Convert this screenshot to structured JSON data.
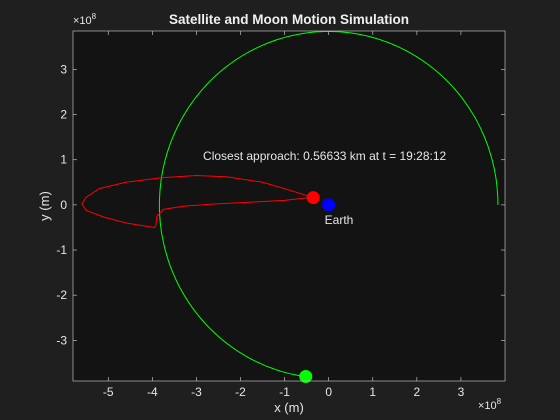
{
  "chart_data": {
    "type": "line",
    "title": "Satellite and Moon Motion Simulation",
    "xlabel": "x (m)",
    "ylabel": "y (m)",
    "x_exponent_label": "×10",
    "x_exponent": "8",
    "y_exponent_label": "×10",
    "y_exponent": "8",
    "xlim": [
      -5.8,
      4.0
    ],
    "ylim": [
      -3.9,
      3.85
    ],
    "xticks": [
      -5,
      -4,
      -3,
      -2,
      -1,
      0,
      1,
      2,
      3
    ],
    "yticks": [
      -3,
      -2,
      -1,
      0,
      1,
      2,
      3
    ],
    "grid": false,
    "background": "#131313",
    "figure_background": "#1f1f1f",
    "text_color": "#e6e6e6",
    "annotation": {
      "text": "Closest approach: 0.56633 km at t = 19:28:12",
      "x": -2.85,
      "y": 0.99
    },
    "series": [
      {
        "color": "#00ff00",
        "kind": "moon-orbit-arc",
        "center": [
          0,
          0
        ],
        "radius": 3.84,
        "start_angle_deg": 0,
        "end_angle_deg": 262
      },
      {
        "color": "#ff0000",
        "kind": "satellite-trajectory",
        "points": [
          [
            -0.35,
            0.16
          ],
          [
            -0.8,
            0.3
          ],
          [
            -1.5,
            0.5
          ],
          [
            -2.3,
            0.62
          ],
          [
            -3.0,
            0.65
          ],
          [
            -3.8,
            0.6
          ],
          [
            -4.6,
            0.5
          ],
          [
            -5.2,
            0.36
          ],
          [
            -5.5,
            0.17
          ],
          [
            -5.6,
            0.02
          ],
          [
            -5.5,
            -0.12
          ],
          [
            -5.1,
            -0.27
          ],
          [
            -4.6,
            -0.4
          ],
          [
            -4.1,
            -0.48
          ],
          [
            -3.95,
            -0.5
          ],
          [
            -3.92,
            -0.45
          ],
          [
            -3.9,
            -0.25
          ],
          [
            -3.75,
            -0.1
          ],
          [
            -3.3,
            -0.03
          ],
          [
            -2.6,
            0.02
          ],
          [
            -1.8,
            0.06
          ],
          [
            -1.0,
            0.1
          ],
          [
            -0.45,
            0.16
          ]
        ]
      }
    ],
    "markers": [
      {
        "name": "Earth",
        "x": 0.0,
        "y": 0.0,
        "color": "#0000ff",
        "label": "Earth"
      },
      {
        "name": "Satellite",
        "x": -0.35,
        "y": 0.16,
        "color": "#ff0000",
        "label": ""
      },
      {
        "name": "Moon",
        "x": -0.52,
        "y": -3.8,
        "color": "#00ff00",
        "label": ""
      }
    ]
  }
}
